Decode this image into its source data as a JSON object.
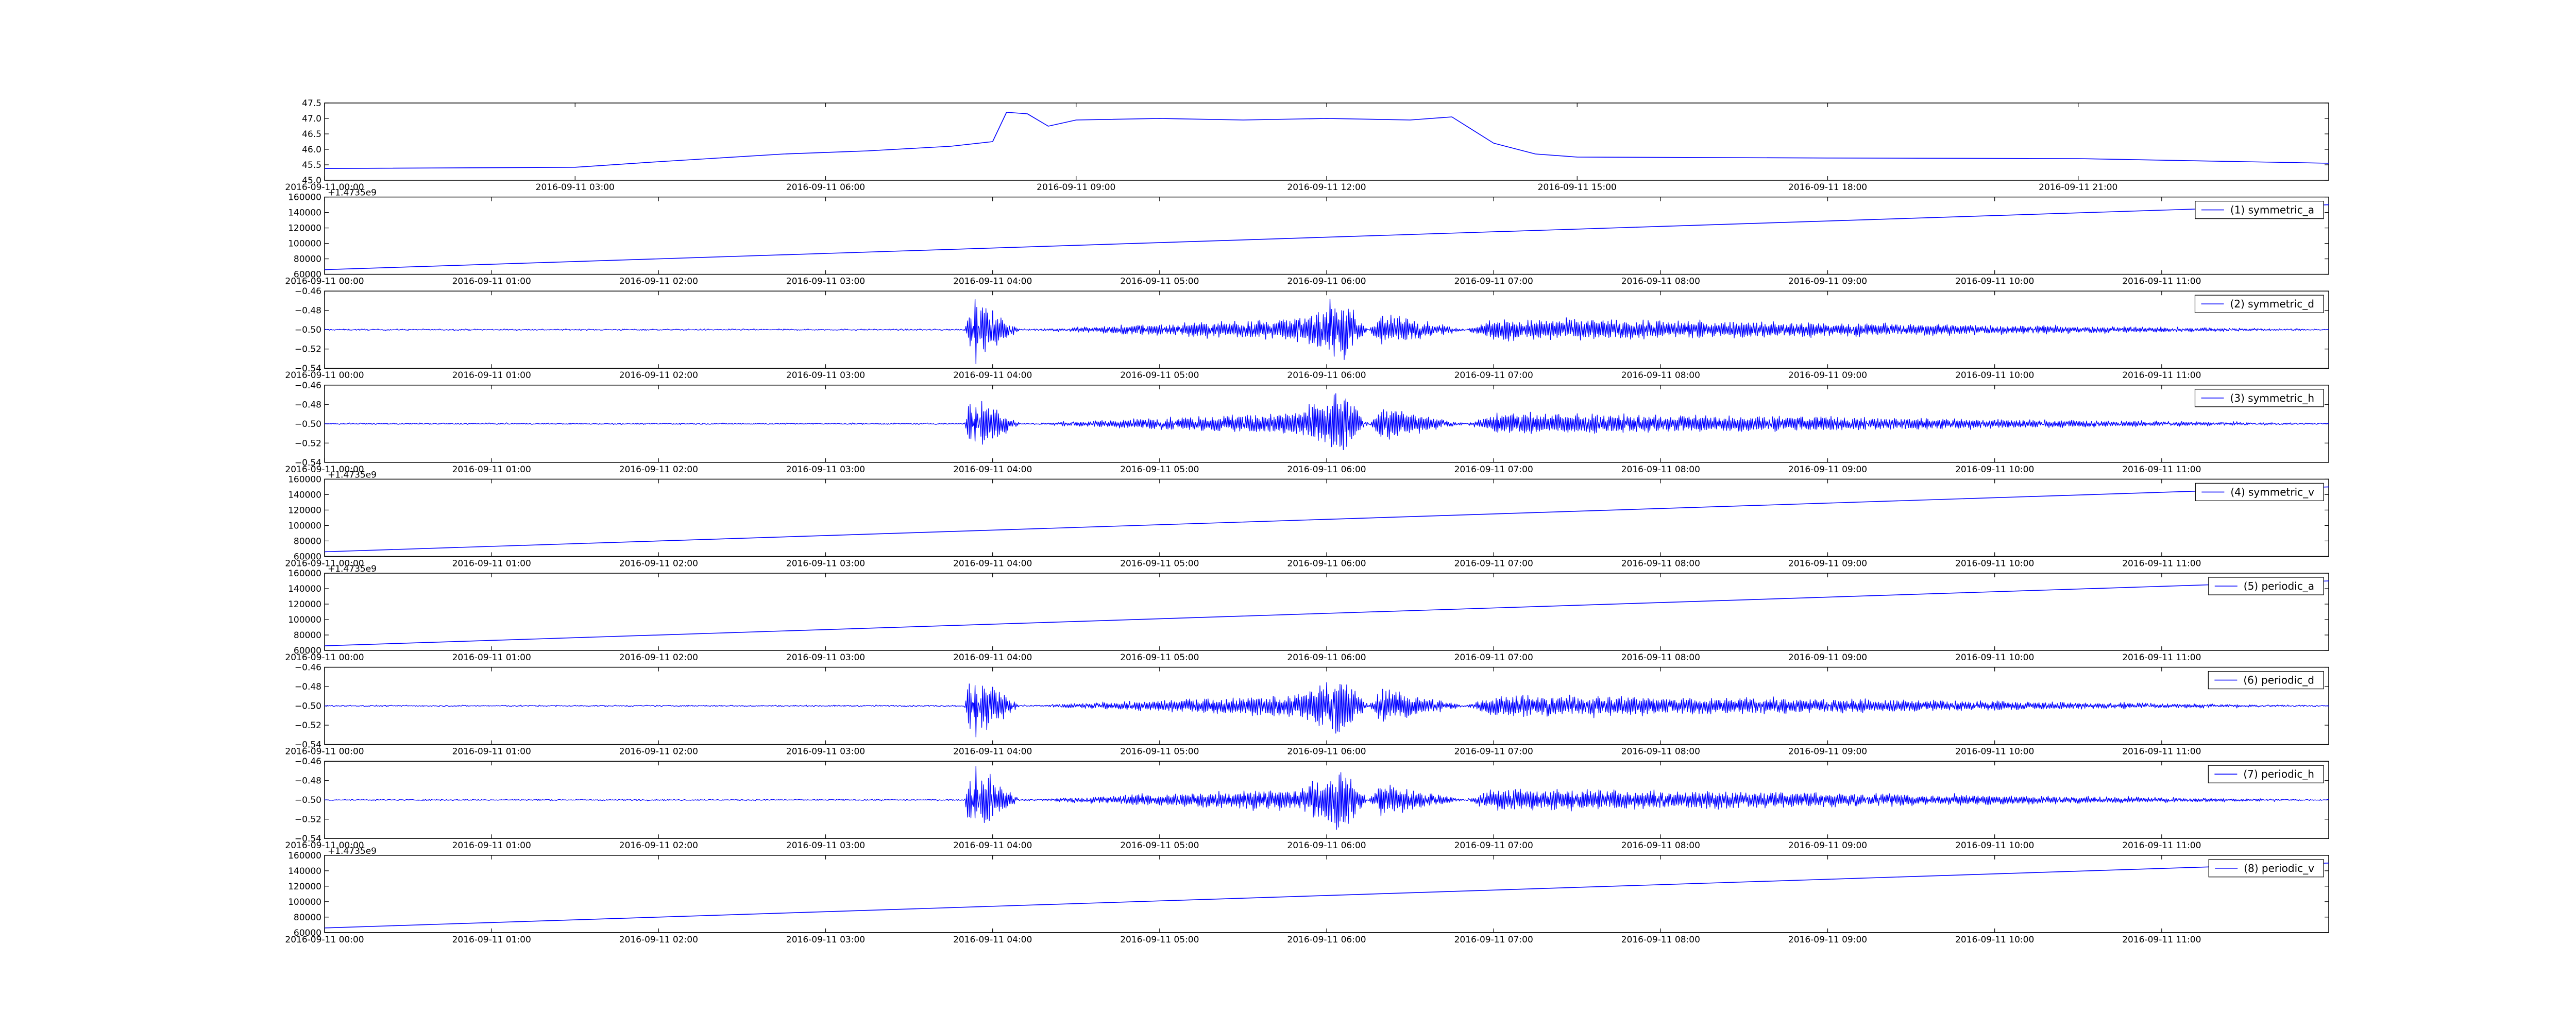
{
  "figure": {
    "background": "#ffffff",
    "line_color": "#0000ff",
    "axes_color": "#000000",
    "grid": false
  },
  "chart_data": [
    {
      "type": "line",
      "title": "",
      "xlabel": "",
      "ylabel": "",
      "ylim": [
        45.0,
        47.5
      ],
      "yticks": [
        45.0,
        45.5,
        46.0,
        46.5,
        47.0,
        47.5
      ],
      "ytick_labels": [
        "45.0",
        "45.5",
        "46.0",
        "46.5",
        "47.0",
        "47.5"
      ],
      "xlim": [
        "2016-09-11 00:00",
        "2016-09-12 00:00"
      ],
      "xtick_labels": [
        "2016-09-11 00:00",
        "2016-09-11 03:00",
        "2016-09-11 06:00",
        "2016-09-11 09:00",
        "2016-09-11 12:00",
        "2016-09-11 15:00",
        "2016-09-11 18:00",
        "2016-09-11 21:00"
      ],
      "offset_label": "",
      "legend": null,
      "signal": "smooth",
      "x": [
        "2016-09-11 00:00",
        "2016-09-11 03:00",
        "2016-09-11 04:00",
        "2016-09-11 05:30",
        "2016-09-11 06:30",
        "2016-09-11 07:30",
        "2016-09-11 08:00",
        "2016-09-11 08:10",
        "2016-09-11 08:25",
        "2016-09-11 08:40",
        "2016-09-11 09:00",
        "2016-09-11 10:00",
        "2016-09-11 11:00",
        "2016-09-11 12:00",
        "2016-09-11 13:00",
        "2016-09-11 13:30",
        "2016-09-11 14:00",
        "2016-09-11 14:30",
        "2016-09-11 15:00",
        "2016-09-11 18:00",
        "2016-09-11 21:00",
        "2016-09-12 00:00"
      ],
      "y": [
        45.38,
        45.42,
        45.6,
        45.85,
        45.95,
        46.1,
        46.25,
        47.2,
        47.15,
        46.75,
        46.95,
        47.0,
        46.95,
        47.0,
        46.95,
        47.05,
        46.2,
        45.85,
        45.75,
        45.72,
        45.7,
        45.55
      ]
    },
    {
      "type": "line",
      "title": "",
      "xlabel": "",
      "ylabel": "",
      "ylim": [
        60000,
        160000
      ],
      "yticks": [
        60000,
        80000,
        100000,
        120000,
        140000,
        160000
      ],
      "ytick_labels": [
        "60000",
        "80000",
        "100000",
        "120000",
        "140000",
        "160000"
      ],
      "xlim": [
        "2016-09-11 00:00",
        "2016-09-11 12:00"
      ],
      "xtick_labels": [
        "2016-09-11 00:00",
        "2016-09-11 01:00",
        "2016-09-11 02:00",
        "2016-09-11 03:00",
        "2016-09-11 04:00",
        "2016-09-11 05:00",
        "2016-09-11 06:00",
        "2016-09-11 07:00",
        "2016-09-11 08:00",
        "2016-09-11 09:00",
        "2016-09-11 10:00",
        "2016-09-11 11:00"
      ],
      "offset_label": "+1.4735e9",
      "legend": "(1) symmetric_a",
      "signal": "linear",
      "x": [
        "2016-09-11 00:00",
        "2016-09-11 12:00"
      ],
      "y": [
        66000,
        150000
      ]
    },
    {
      "type": "line",
      "title": "",
      "xlabel": "",
      "ylabel": "",
      "ylim": [
        -0.54,
        -0.46
      ],
      "yticks": [
        -0.54,
        -0.52,
        -0.5,
        -0.48,
        -0.46
      ],
      "ytick_labels": [
        "−0.54",
        "−0.52",
        "−0.50",
        "−0.48",
        "−0.46"
      ],
      "xlim": [
        "2016-09-11 00:00",
        "2016-09-11 12:00"
      ],
      "xtick_labels": [
        "2016-09-11 00:00",
        "2016-09-11 01:00",
        "2016-09-11 02:00",
        "2016-09-11 03:00",
        "2016-09-11 04:00",
        "2016-09-11 05:00",
        "2016-09-11 06:00",
        "2016-09-11 07:00",
        "2016-09-11 08:00",
        "2016-09-11 09:00",
        "2016-09-11 10:00",
        "2016-09-11 11:00"
      ],
      "offset_label": "",
      "legend": "(2) symmetric_d",
      "signal": "noise",
      "baseline": -0.5,
      "x": [
        "2016-09-11 00:00",
        "2016-09-11 03:50",
        "2016-09-11 03:52",
        "2016-09-11 03:54",
        "2016-09-11 03:56",
        "2016-09-11 04:10",
        "2016-09-11 05:50",
        "2016-09-11 06:05",
        "2016-09-11 06:20",
        "2016-09-11 06:50",
        "2016-09-11 07:00",
        "2016-09-11 12:00"
      ],
      "y": [
        -0.5,
        -0.5,
        -0.47,
        -0.535,
        -0.475,
        -0.5,
        -0.49,
        -0.47,
        -0.515,
        -0.5,
        -0.51,
        -0.5
      ]
    },
    {
      "type": "line",
      "title": "",
      "xlabel": "",
      "ylabel": "",
      "ylim": [
        -0.54,
        -0.46
      ],
      "yticks": [
        -0.54,
        -0.52,
        -0.5,
        -0.48,
        -0.46
      ],
      "ytick_labels": [
        "−0.54",
        "−0.52",
        "−0.50",
        "−0.48",
        "−0.46"
      ],
      "xlim": [
        "2016-09-11 00:00",
        "2016-09-11 12:00"
      ],
      "xtick_labels": [
        "2016-09-11 00:00",
        "2016-09-11 01:00",
        "2016-09-11 02:00",
        "2016-09-11 03:00",
        "2016-09-11 04:00",
        "2016-09-11 05:00",
        "2016-09-11 06:00",
        "2016-09-11 07:00",
        "2016-09-11 08:00",
        "2016-09-11 09:00",
        "2016-09-11 10:00",
        "2016-09-11 11:00"
      ],
      "offset_label": "",
      "legend": "(3) symmetric_h",
      "signal": "noise",
      "baseline": -0.5,
      "x": [
        "2016-09-11 00:00",
        "2016-09-11 03:50",
        "2016-09-11 03:52",
        "2016-09-11 03:54",
        "2016-09-11 03:56",
        "2016-09-11 04:10",
        "2016-09-11 05:50",
        "2016-09-11 06:05",
        "2016-09-11 06:20",
        "2016-09-11 06:50",
        "2016-09-11 07:00",
        "2016-09-11 12:00"
      ],
      "y": [
        -0.5,
        -0.5,
        -0.53,
        -0.465,
        -0.525,
        -0.5,
        -0.51,
        -0.53,
        -0.485,
        -0.5,
        -0.49,
        -0.5
      ]
    },
    {
      "type": "line",
      "title": "",
      "xlabel": "",
      "ylabel": "",
      "ylim": [
        60000,
        160000
      ],
      "yticks": [
        60000,
        80000,
        100000,
        120000,
        140000,
        160000
      ],
      "ytick_labels": [
        "60000",
        "80000",
        "100000",
        "120000",
        "140000",
        "160000"
      ],
      "xlim": [
        "2016-09-11 00:00",
        "2016-09-11 12:00"
      ],
      "xtick_labels": [
        "2016-09-11 00:00",
        "2016-09-11 01:00",
        "2016-09-11 02:00",
        "2016-09-11 03:00",
        "2016-09-11 04:00",
        "2016-09-11 05:00",
        "2016-09-11 06:00",
        "2016-09-11 07:00",
        "2016-09-11 08:00",
        "2016-09-11 09:00",
        "2016-09-11 10:00",
        "2016-09-11 11:00"
      ],
      "offset_label": "+1.4735e9",
      "legend": "(4) symmetric_v",
      "signal": "linear",
      "x": [
        "2016-09-11 00:00",
        "2016-09-11 12:00"
      ],
      "y": [
        66000,
        150000
      ]
    },
    {
      "type": "line",
      "title": "",
      "xlabel": "",
      "ylabel": "",
      "ylim": [
        60000,
        160000
      ],
      "yticks": [
        60000,
        80000,
        100000,
        120000,
        140000,
        160000
      ],
      "ytick_labels": [
        "60000",
        "80000",
        "100000",
        "120000",
        "140000",
        "160000"
      ],
      "xlim": [
        "2016-09-11 00:00",
        "2016-09-11 12:00"
      ],
      "xtick_labels": [
        "2016-09-11 00:00",
        "2016-09-11 01:00",
        "2016-09-11 02:00",
        "2016-09-11 03:00",
        "2016-09-11 04:00",
        "2016-09-11 05:00",
        "2016-09-11 06:00",
        "2016-09-11 07:00",
        "2016-09-11 08:00",
        "2016-09-11 09:00",
        "2016-09-11 10:00",
        "2016-09-11 11:00"
      ],
      "offset_label": "+1.4735e9",
      "legend": "(5) periodic_a",
      "signal": "linear",
      "x": [
        "2016-09-11 00:00",
        "2016-09-11 12:00"
      ],
      "y": [
        66000,
        150000
      ]
    },
    {
      "type": "line",
      "title": "",
      "xlabel": "",
      "ylabel": "",
      "ylim": [
        -0.54,
        -0.46
      ],
      "yticks": [
        -0.54,
        -0.52,
        -0.5,
        -0.48,
        -0.46
      ],
      "ytick_labels": [
        "−0.54",
        "−0.52",
        "−0.50",
        "−0.48",
        "−0.46"
      ],
      "xlim": [
        "2016-09-11 00:00",
        "2016-09-11 12:00"
      ],
      "xtick_labels": [
        "2016-09-11 00:00",
        "2016-09-11 01:00",
        "2016-09-11 02:00",
        "2016-09-11 03:00",
        "2016-09-11 04:00",
        "2016-09-11 05:00",
        "2016-09-11 06:00",
        "2016-09-11 07:00",
        "2016-09-11 08:00",
        "2016-09-11 09:00",
        "2016-09-11 10:00",
        "2016-09-11 11:00"
      ],
      "offset_label": "",
      "legend": "(6) periodic_d",
      "signal": "noise",
      "baseline": -0.5,
      "x": [
        "2016-09-11 00:00",
        "2016-09-11 03:50",
        "2016-09-11 03:52",
        "2016-09-11 03:54",
        "2016-09-11 03:56",
        "2016-09-11 04:10",
        "2016-09-11 05:50",
        "2016-09-11 06:05",
        "2016-09-11 06:20",
        "2016-09-11 06:50",
        "2016-09-11 07:00",
        "2016-09-11 12:00"
      ],
      "y": [
        -0.5,
        -0.5,
        -0.47,
        -0.535,
        -0.475,
        -0.5,
        -0.49,
        -0.47,
        -0.515,
        -0.5,
        -0.51,
        -0.5
      ]
    },
    {
      "type": "line",
      "title": "",
      "xlabel": "",
      "ylabel": "",
      "ylim": [
        -0.54,
        -0.46
      ],
      "yticks": [
        -0.54,
        -0.52,
        -0.5,
        -0.48,
        -0.46
      ],
      "ytick_labels": [
        "−0.54",
        "−0.52",
        "−0.50",
        "−0.48",
        "−0.46"
      ],
      "xlim": [
        "2016-09-11 00:00",
        "2016-09-11 12:00"
      ],
      "xtick_labels": [
        "2016-09-11 00:00",
        "2016-09-11 01:00",
        "2016-09-11 02:00",
        "2016-09-11 03:00",
        "2016-09-11 04:00",
        "2016-09-11 05:00",
        "2016-09-11 06:00",
        "2016-09-11 07:00",
        "2016-09-11 08:00",
        "2016-09-11 09:00",
        "2016-09-11 10:00",
        "2016-09-11 11:00"
      ],
      "offset_label": "",
      "legend": "(7) periodic_h",
      "signal": "noise",
      "baseline": -0.5,
      "x": [
        "2016-09-11 00:00",
        "2016-09-11 03:50",
        "2016-09-11 03:52",
        "2016-09-11 03:54",
        "2016-09-11 03:56",
        "2016-09-11 04:10",
        "2016-09-11 05:50",
        "2016-09-11 06:05",
        "2016-09-11 06:20",
        "2016-09-11 06:50",
        "2016-09-11 07:00",
        "2016-09-11 12:00"
      ],
      "y": [
        -0.5,
        -0.5,
        -0.53,
        -0.465,
        -0.525,
        -0.5,
        -0.51,
        -0.53,
        -0.485,
        -0.5,
        -0.49,
        -0.5
      ]
    },
    {
      "type": "line",
      "title": "",
      "xlabel": "",
      "ylabel": "",
      "ylim": [
        60000,
        160000
      ],
      "yticks": [
        60000,
        80000,
        100000,
        120000,
        140000,
        160000
      ],
      "ytick_labels": [
        "60000",
        "80000",
        "100000",
        "120000",
        "140000",
        "160000"
      ],
      "xlim": [
        "2016-09-11 00:00",
        "2016-09-11 12:00"
      ],
      "xtick_labels": [
        "2016-09-11 00:00",
        "2016-09-11 01:00",
        "2016-09-11 02:00",
        "2016-09-11 03:00",
        "2016-09-11 04:00",
        "2016-09-11 05:00",
        "2016-09-11 06:00",
        "2016-09-11 07:00",
        "2016-09-11 08:00",
        "2016-09-11 09:00",
        "2016-09-11 10:00",
        "2016-09-11 11:00"
      ],
      "offset_label": "+1.4735e9",
      "legend": "(8) periodic_v",
      "signal": "linear",
      "x": [
        "2016-09-11 00:00",
        "2016-09-11 12:00"
      ],
      "y": [
        66000,
        150000
      ]
    }
  ]
}
